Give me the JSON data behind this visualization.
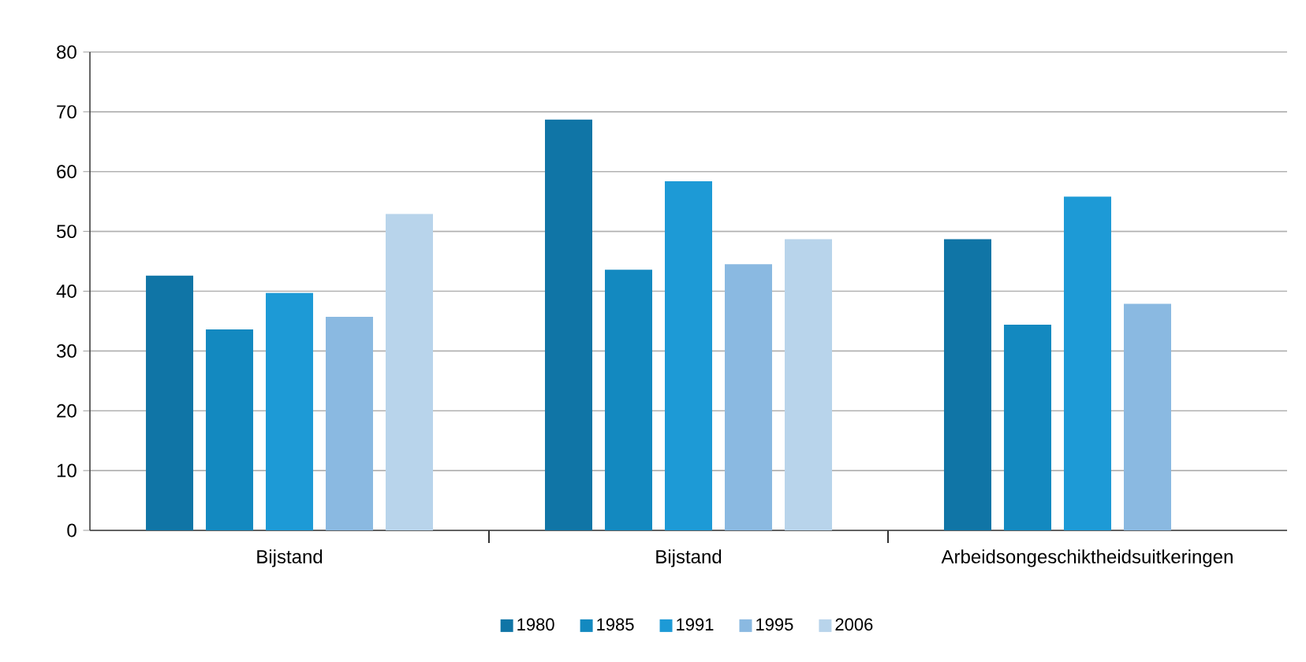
{
  "chart_data": {
    "type": "bar",
    "categories": [
      "Bijstand",
      "Bijstand",
      "Arbeidsongeschiktheidsuitkeringen"
    ],
    "series": [
      {
        "name": "1980",
        "color": "#1075a6",
        "values": [
          42.6,
          68.7,
          48.7
        ]
      },
      {
        "name": "1985",
        "color": "#1389c0",
        "values": [
          33.6,
          43.6,
          34.4
        ]
      },
      {
        "name": "1991",
        "color": "#1d9ad6",
        "values": [
          39.7,
          58.4,
          55.8
        ]
      },
      {
        "name": "1995",
        "color": "#8ab9e1",
        "values": [
          35.7,
          44.5,
          37.9
        ]
      },
      {
        "name": "2006",
        "color": "#b8d4eb",
        "values": [
          52.9,
          48.7,
          null
        ]
      }
    ],
    "ylim": [
      0,
      80
    ],
    "yticks": [
      0,
      10,
      20,
      30,
      40,
      50,
      60,
      70,
      80
    ],
    "grid": "y",
    "legend": "bottom"
  }
}
